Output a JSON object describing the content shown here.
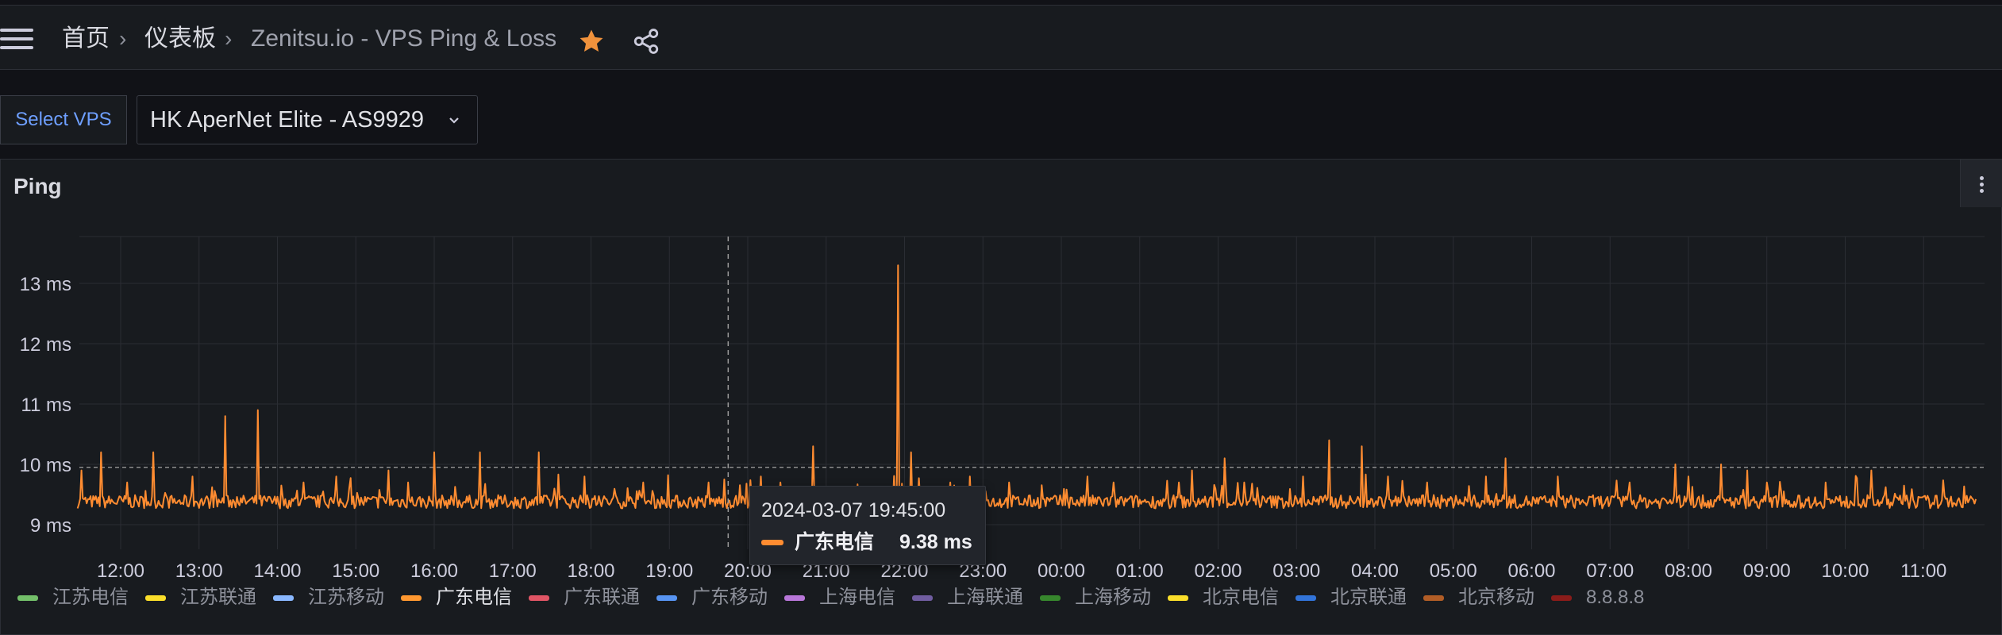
{
  "breadcrumbs": {
    "home": "首页",
    "dashboards": "仪表板",
    "current": "Zenitsu.io - VPS Ping & Loss"
  },
  "variable": {
    "label": "Select VPS",
    "value": "HK AperNet Elite - AS9929"
  },
  "colors": {
    "accent_star": "#f0923c",
    "series_active": "#ff8c31",
    "variable_label": "#6e9fff"
  },
  "panel": {
    "title": "Ping"
  },
  "tooltip": {
    "time": "2024-03-07 19:45:00",
    "series": "广东电信",
    "value": "9.38 ms",
    "color": "#ff8c31"
  },
  "legend": [
    {
      "label": "江苏电信",
      "color": "#73bf69",
      "active": false
    },
    {
      "label": "江苏联通",
      "color": "#fade2a",
      "active": false
    },
    {
      "label": "江苏移动",
      "color": "#8ab8ff",
      "active": false
    },
    {
      "label": "广东电信",
      "color": "#ff9830",
      "active": true
    },
    {
      "label": "广东联通",
      "color": "#e05565",
      "active": false
    },
    {
      "label": "广东移动",
      "color": "#5794f2",
      "active": false
    },
    {
      "label": "上海电信",
      "color": "#b877d9",
      "active": false
    },
    {
      "label": "上海联通",
      "color": "#705da0",
      "active": false
    },
    {
      "label": "上海移动",
      "color": "#37872d",
      "active": false
    },
    {
      "label": "北京电信",
      "color": "#fade2a",
      "active": false
    },
    {
      "label": "北京联通",
      "color": "#3274d9",
      "active": false
    },
    {
      "label": "北京移动",
      "color": "#b15d26",
      "active": false
    },
    {
      "label": "8.8.8.8",
      "color": "#8a1c1a",
      "active": false
    }
  ],
  "chart_data": {
    "type": "line",
    "title": "Ping",
    "unit": "ms",
    "x_ticks": [
      "12:00",
      "13:00",
      "14:00",
      "15:00",
      "16:00",
      "17:00",
      "18:00",
      "19:00",
      "20:00",
      "21:00",
      "22:00",
      "23:00",
      "00:00",
      "01:00",
      "02:00",
      "03:00",
      "04:00",
      "05:00",
      "06:00",
      "07:00",
      "08:00",
      "09:00",
      "10:00",
      "11:00"
    ],
    "y_ticks": [
      "9 ms",
      "10 ms",
      "11 ms",
      "12 ms",
      "13 ms"
    ],
    "ylim": [
      8.7,
      13.9
    ],
    "threshold": 9.95,
    "hover_time": "19:45",
    "series": [
      {
        "name": "广东电信",
        "color": "#ff8c31",
        "baseline_ms": 9.38,
        "x_start_hours": -0.55,
        "x_end_hours": 23.68,
        "step_minutes": 1,
        "spikes": [
          {
            "t": "11:30",
            "v": 9.9
          },
          {
            "t": "11:45",
            "v": 10.2
          },
          {
            "t": "12:05",
            "v": 9.7
          },
          {
            "t": "12:25",
            "v": 10.2
          },
          {
            "t": "12:55",
            "v": 9.8
          },
          {
            "t": "13:20",
            "v": 10.8
          },
          {
            "t": "13:45",
            "v": 10.9
          },
          {
            "t": "14:20",
            "v": 9.7
          },
          {
            "t": "14:45",
            "v": 9.8
          },
          {
            "t": "15:25",
            "v": 9.9
          },
          {
            "t": "15:40",
            "v": 9.7
          },
          {
            "t": "16:00",
            "v": 10.2
          },
          {
            "t": "16:35",
            "v": 10.2
          },
          {
            "t": "17:20",
            "v": 10.2
          },
          {
            "t": "17:55",
            "v": 9.8
          },
          {
            "t": "18:40",
            "v": 9.7
          },
          {
            "t": "19:30",
            "v": 9.7
          },
          {
            "t": "20:10",
            "v": 9.8
          },
          {
            "t": "20:25",
            "v": 9.7
          },
          {
            "t": "20:50",
            "v": 10.3
          },
          {
            "t": "21:55",
            "v": 13.3
          },
          {
            "t": "22:05",
            "v": 10.2
          },
          {
            "t": "22:35",
            "v": 9.7
          },
          {
            "t": "22:50",
            "v": 9.8
          },
          {
            "t": "23:20",
            "v": 9.7
          },
          {
            "t": "00:20",
            "v": 9.8
          },
          {
            "t": "00:40",
            "v": 9.7
          },
          {
            "t": "01:30",
            "v": 9.7
          },
          {
            "t": "01:40",
            "v": 9.9
          },
          {
            "t": "02:05",
            "v": 10.1
          },
          {
            "t": "02:20",
            "v": 9.7
          },
          {
            "t": "03:05",
            "v": 9.8
          },
          {
            "t": "03:25",
            "v": 10.4
          },
          {
            "t": "03:50",
            "v": 10.3
          },
          {
            "t": "04:10",
            "v": 9.8
          },
          {
            "t": "04:40",
            "v": 9.7
          },
          {
            "t": "05:25",
            "v": 9.8
          },
          {
            "t": "05:40",
            "v": 10.1
          },
          {
            "t": "06:20",
            "v": 9.8
          },
          {
            "t": "07:15",
            "v": 9.7
          },
          {
            "t": "07:50",
            "v": 10.0
          },
          {
            "t": "08:00",
            "v": 9.8
          },
          {
            "t": "08:25",
            "v": 10.0
          },
          {
            "t": "08:45",
            "v": 9.9
          },
          {
            "t": "09:00",
            "v": 9.7
          },
          {
            "t": "09:45",
            "v": 9.7
          },
          {
            "t": "10:20",
            "v": 9.9
          },
          {
            "t": "11:00",
            "v": 9.7
          },
          {
            "t": "11:20",
            "v": 9.6
          }
        ]
      }
    ]
  }
}
